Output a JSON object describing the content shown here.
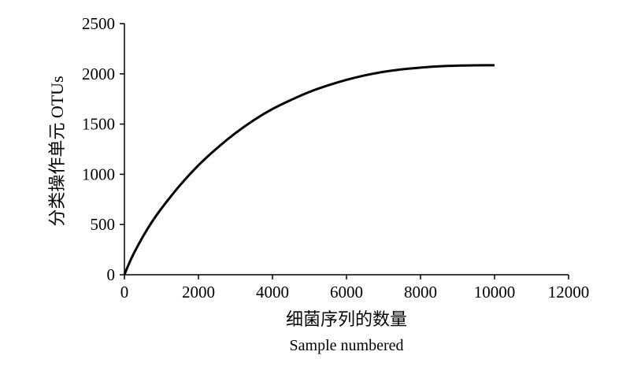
{
  "chart_data": {
    "type": "line",
    "xlabel": "细菌序列的数量",
    "xlabel_en": "Sample numbered",
    "ylabel": "分类操作单元 OTUs",
    "xlim": [
      0,
      12000
    ],
    "ylim": [
      0,
      2500
    ],
    "x_ticks": [
      "0",
      "2000",
      "4000",
      "6000",
      "8000",
      "10000",
      "12000"
    ],
    "y_ticks": [
      "0",
      "500",
      "1000",
      "1500",
      "2000",
      "2500"
    ],
    "grid": false,
    "legend": "none",
    "line_color": "#000000",
    "series": [
      {
        "x": [
          0,
          100,
          250,
          500,
          750,
          1000,
          1500,
          2000,
          2500,
          3000,
          3500,
          4000,
          4500,
          5000,
          5500,
          6000,
          6500,
          7000,
          7500,
          8000,
          8500,
          9000,
          9500,
          10000
        ],
        "values": [
          0,
          90,
          210,
          380,
          530,
          660,
          890,
          1090,
          1260,
          1410,
          1540,
          1650,
          1740,
          1820,
          1885,
          1940,
          1985,
          2020,
          2045,
          2062,
          2075,
          2082,
          2085,
          2086
        ]
      }
    ]
  }
}
